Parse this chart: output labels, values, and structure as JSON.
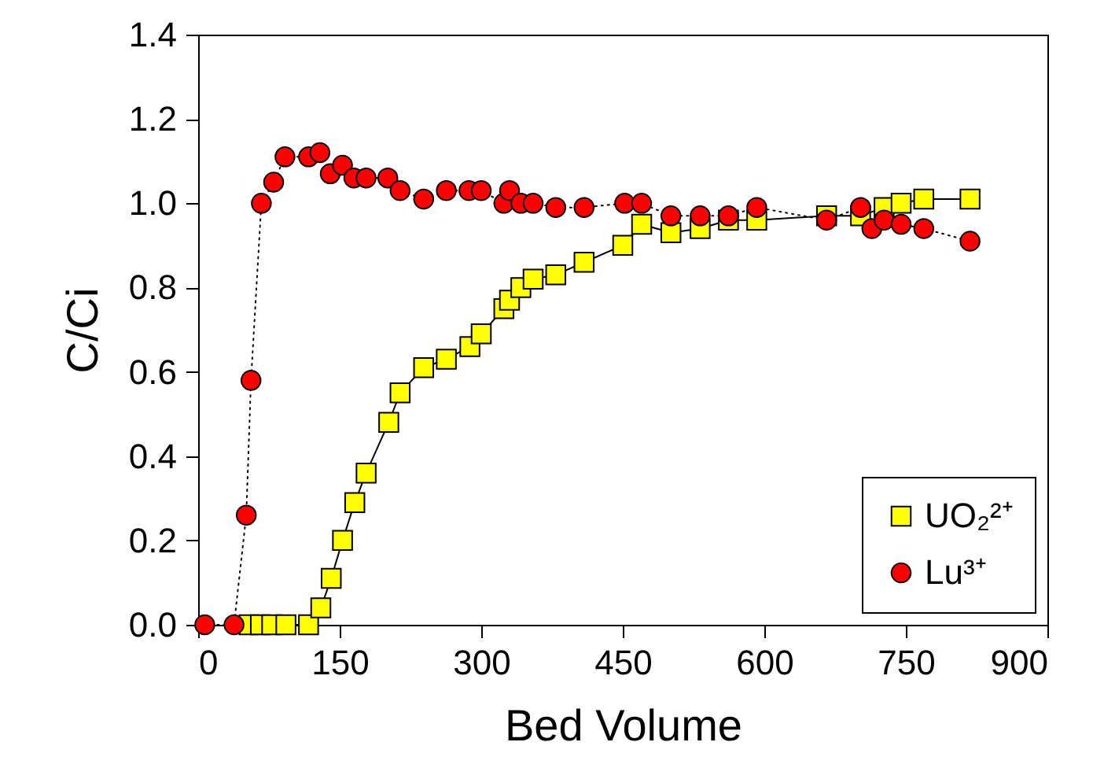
{
  "chart_data": {
    "type": "line",
    "xlabel": "Bed Volume",
    "ylabel": "C/Ci",
    "xlim": [
      0,
      900
    ],
    "xticks": [
      0,
      150,
      300,
      450,
      600,
      750,
      900
    ],
    "ylim": [
      0,
      1.4
    ],
    "yticks": [
      {
        "value": 0,
        "label": "0.0"
      },
      {
        "value": 0.2,
        "label": "0.2"
      },
      {
        "value": 0.4,
        "label": "0.4"
      },
      {
        "value": 0.6,
        "label": "0.6"
      },
      {
        "value": 0.8,
        "label": "0.8"
      },
      {
        "value": 1.0,
        "label": "1.0"
      },
      {
        "value": 1.2,
        "label": "1.2"
      },
      {
        "value": 1.4,
        "label": "1.4"
      }
    ],
    "grid": false,
    "legend": "bottom right",
    "series": [
      {
        "name": "UO₂²⁺",
        "color": "#ffff00",
        "marker": "square",
        "line_style": "solid",
        "x": [
          54,
          66,
          78,
          93,
          117,
          130,
          141,
          153,
          166,
          178,
          202,
          214,
          239,
          263,
          288,
          300,
          324,
          330,
          342,
          355,
          379,
          409,
          450,
          470,
          501,
          532,
          562,
          592,
          666,
          702,
          727,
          745,
          769,
          818
        ],
        "values": [
          0,
          0,
          0,
          0,
          0,
          0.04,
          0.11,
          0.2,
          0.29,
          0.36,
          0.48,
          0.55,
          0.61,
          0.63,
          0.66,
          0.69,
          0.75,
          0.77,
          0.8,
          0.82,
          0.83,
          0.86,
          0.9,
          0.95,
          0.93,
          0.94,
          0.96,
          0.96,
          0.97,
          0.97,
          0.99,
          1.0,
          1.01,
          1.01
        ]
      },
      {
        "name": "Lu³⁺",
        "color": "#ff0000",
        "marker": "circle",
        "line_style": "dotted",
        "x": [
          7,
          38,
          51,
          56,
          67,
          80,
          92,
          117,
          129,
          140,
          153,
          165,
          178,
          201,
          214,
          239,
          263,
          287,
          300,
          324,
          330,
          342,
          355,
          379,
          409,
          452,
          470,
          501,
          532,
          562,
          592,
          666,
          702,
          714,
          727,
          745,
          769,
          818
        ],
        "values": [
          0,
          0,
          0.26,
          0.58,
          1.0,
          1.05,
          1.11,
          1.11,
          1.12,
          1.07,
          1.09,
          1.06,
          1.06,
          1.06,
          1.03,
          1.01,
          1.03,
          1.03,
          1.03,
          1.0,
          1.03,
          1.0,
          1.0,
          0.99,
          0.99,
          1.0,
          1.0,
          0.97,
          0.97,
          0.97,
          0.99,
          0.96,
          0.99,
          0.94,
          0.96,
          0.95,
          0.94,
          0.91
        ]
      }
    ]
  }
}
